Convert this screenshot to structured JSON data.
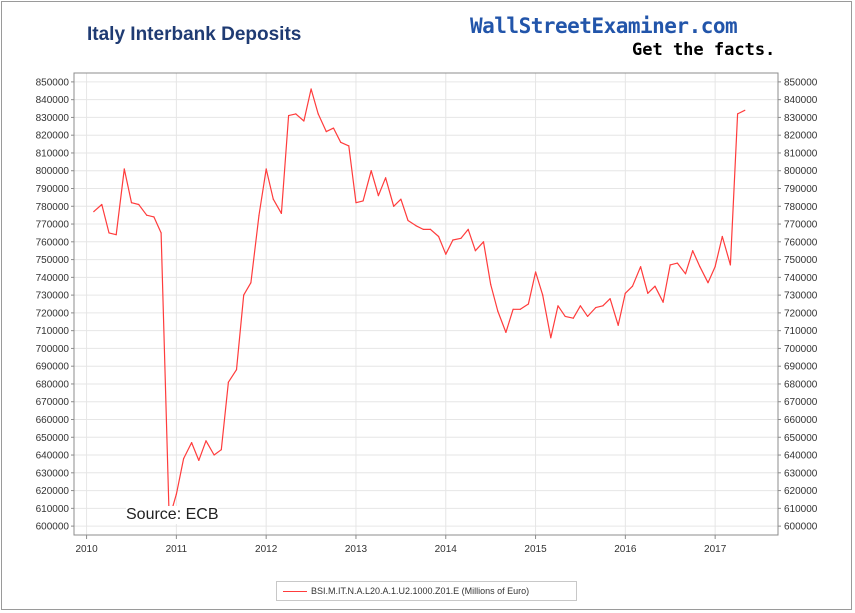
{
  "header": {
    "title": "Italy Interbank Deposits",
    "brand": "WallStreetExaminer.com",
    "tagline": "Get the facts."
  },
  "source_note": "Source: ECB",
  "chart_data": {
    "type": "line",
    "title": "Italy Interbank Deposits",
    "xlabel": "",
    "ylabel": "",
    "xlim": [
      2009.86,
      2017.7
    ],
    "ylim": [
      595000,
      855000
    ],
    "x_ticks": [
      2010,
      2011,
      2012,
      2013,
      2014,
      2015,
      2016,
      2017
    ],
    "x_tick_labels": [
      "2010",
      "2011",
      "2012",
      "2013",
      "2014",
      "2015",
      "2016",
      "2017"
    ],
    "y_ticks": [
      600000,
      610000,
      620000,
      630000,
      640000,
      650000,
      660000,
      670000,
      680000,
      690000,
      700000,
      710000,
      720000,
      730000,
      740000,
      750000,
      760000,
      770000,
      780000,
      790000,
      800000,
      810000,
      820000,
      830000,
      840000,
      850000
    ],
    "grid": true,
    "legend_position": "bottom-center",
    "line_color": "#ff3c3c",
    "series": [
      {
        "name": "BSI.M.IT.N.A.L20.A.1.U2.1000.Z01.E (Millions of Euro)",
        "x": [
          2010.08,
          2010.17,
          2010.25,
          2010.33,
          2010.42,
          2010.5,
          2010.58,
          2010.67,
          2010.75,
          2010.83,
          2010.92,
          2011.0,
          2011.08,
          2011.17,
          2011.25,
          2011.33,
          2011.42,
          2011.5,
          2011.58,
          2011.67,
          2011.75,
          2011.83,
          2011.92,
          2012.0,
          2012.08,
          2012.17,
          2012.25,
          2012.33,
          2012.42,
          2012.5,
          2012.58,
          2012.67,
          2012.75,
          2012.83,
          2012.92,
          2013.0,
          2013.08,
          2013.17,
          2013.25,
          2013.33,
          2013.42,
          2013.5,
          2013.58,
          2013.67,
          2013.75,
          2013.83,
          2013.92,
          2014.0,
          2014.08,
          2014.17,
          2014.25,
          2014.33,
          2014.42,
          2014.5,
          2014.58,
          2014.67,
          2014.75,
          2014.83,
          2014.92,
          2015.0,
          2015.08,
          2015.17,
          2015.25,
          2015.33,
          2015.42,
          2015.5,
          2015.58,
          2015.67,
          2015.75,
          2015.83,
          2015.92,
          2016.0,
          2016.08,
          2016.17,
          2016.25,
          2016.33,
          2016.42,
          2016.5,
          2016.58,
          2016.67,
          2016.75,
          2016.83,
          2016.92,
          2017.0,
          2017.08,
          2017.17,
          2017.25,
          2017.33
        ],
        "values": [
          777000,
          781000,
          765000,
          764000,
          801000,
          782000,
          781000,
          775000,
          774000,
          765000,
          604000,
          618000,
          638000,
          647000,
          637000,
          648000,
          640000,
          643000,
          681000,
          688000,
          730000,
          737000,
          775000,
          801000,
          784000,
          776000,
          831000,
          832000,
          828000,
          846000,
          832000,
          822000,
          824000,
          816000,
          814000,
          782000,
          783000,
          800000,
          786000,
          796000,
          780000,
          784000,
          772000,
          769000,
          767000,
          767000,
          763000,
          753000,
          761000,
          762000,
          767000,
          755000,
          760000,
          736000,
          721000,
          709000,
          722000,
          722000,
          725000,
          743000,
          730000,
          706000,
          724000,
          718000,
          717000,
          724000,
          718000,
          723000,
          724000,
          728000,
          713000,
          731000,
          735000,
          746000,
          731000,
          735000,
          726000,
          747000,
          748000,
          742000,
          755000,
          746000,
          737000,
          746000,
          763000,
          747000,
          832000,
          834000
        ]
      }
    ]
  }
}
